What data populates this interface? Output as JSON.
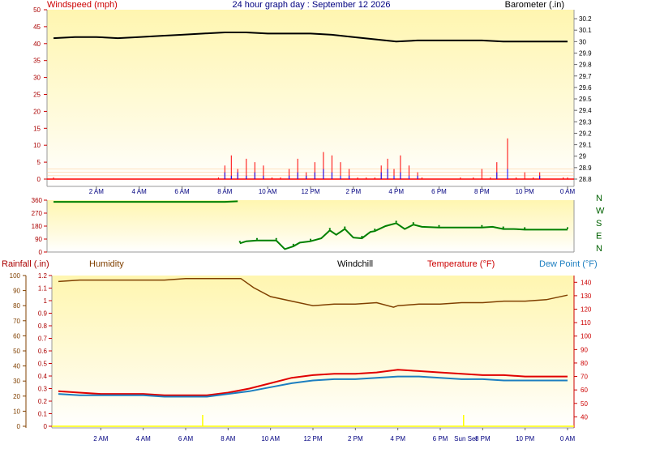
{
  "window_title": "24 hour graph day : September 12 2026",
  "colors": {
    "wind_gust": "#ff0000",
    "wind_avg": "#0000ff",
    "barometer": "#000000",
    "direction": "#008000",
    "humidity": "#804000",
    "temperature": "#e00000",
    "dewpoint": "#1c7ec0",
    "rain": "#ffff00",
    "left_axis_text": "#aa0000",
    "dir_axis_text": "#006000"
  },
  "chart_data": [
    {
      "type": "line",
      "name": "wind-barometer",
      "title": "24 hour graph day : September 12 2026",
      "y_left_label": "Windspeed (mph)",
      "y_right_label": "Barometer (.in)",
      "y_left_ticks": [
        "0",
        "5",
        "10",
        "15",
        "20",
        "25",
        "30",
        "35",
        "40",
        "45",
        "50"
      ],
      "y_right_ticks": [
        "28.8",
        "28.9",
        "29",
        "29.1",
        "29.2",
        "29.3",
        "29.4",
        "29.5",
        "29.6",
        "29.7",
        "29.8",
        "29.9",
        "30",
        "30.1",
        "30.2"
      ],
      "x_ticks": [
        "2 AM",
        "4 AM",
        "6 AM",
        "8 AM",
        "10 AM",
        "12 PM",
        "2 PM",
        "4 PM",
        "6 PM",
        "8 PM",
        "10 PM",
        "0 AM"
      ],
      "ylim_left": [
        0,
        50
      ],
      "ylim_right": [
        28.75,
        30.25
      ],
      "xlim": [
        0,
        24
      ],
      "barometer": {
        "x": [
          0,
          1,
          2,
          3,
          4,
          5,
          6,
          7,
          8,
          9,
          10,
          11,
          12,
          13,
          14,
          15,
          16,
          17,
          18,
          19,
          20,
          21,
          22,
          23,
          24
        ],
        "values": [
          30.03,
          30.04,
          30.04,
          30.03,
          30.04,
          30.05,
          30.06,
          30.07,
          30.08,
          30.08,
          30.07,
          30.07,
          30.07,
          30.06,
          30.04,
          30.02,
          30.0,
          30.01,
          30.01,
          30.01,
          30.01,
          30.0,
          30.0,
          30.0,
          30.0
        ]
      },
      "wind_gust": {
        "x": [
          0,
          7.7,
          8.0,
          8.3,
          8.6,
          9.0,
          9.4,
          9.8,
          10.2,
          10.6,
          11.0,
          11.4,
          11.8,
          12.2,
          12.6,
          13.0,
          13.4,
          13.8,
          14.2,
          14.6,
          15.0,
          15.3,
          15.6,
          15.9,
          16.2,
          16.6,
          17.0,
          17.2,
          19.0,
          19.6,
          20.0,
          20.4,
          20.7,
          21.2,
          21.6,
          22.0,
          22.4,
          22.7,
          23.8,
          24
        ],
        "values": [
          0.5,
          0.5,
          4,
          7,
          3,
          6,
          5,
          4,
          0.5,
          0.5,
          3,
          6,
          2,
          5,
          8,
          7,
          5,
          3,
          0.5,
          0.5,
          0.5,
          4,
          6,
          3,
          7,
          4,
          2,
          0.5,
          0.5,
          0.5,
          3,
          0.5,
          5,
          12,
          0.5,
          2,
          0.5,
          2,
          0.5,
          0.5
        ]
      },
      "wind_avg": {
        "x": [
          0,
          7.7,
          8.0,
          8.3,
          8.6,
          9.0,
          9.4,
          9.8,
          10.2,
          10.6,
          11.0,
          11.4,
          11.8,
          12.2,
          12.6,
          13.0,
          13.4,
          13.8,
          14.2,
          14.6,
          15.0,
          15.3,
          15.6,
          15.9,
          16.2,
          16.6,
          17.0,
          17.2,
          19.0,
          20.7,
          21.2,
          21.6,
          22.7,
          24
        ],
        "values": [
          0,
          0,
          2,
          1,
          2,
          1,
          2,
          1,
          0,
          0,
          1,
          2,
          1,
          2,
          3,
          2,
          1,
          1,
          0,
          0,
          0,
          2,
          3,
          1,
          2,
          1,
          1,
          0,
          0,
          2,
          3,
          0,
          1,
          0
        ]
      }
    },
    {
      "type": "scatter",
      "name": "wind-direction",
      "y_left_ticks": [
        "0",
        "90",
        "180",
        "270",
        "360"
      ],
      "y_right_labels": [
        "N",
        "W",
        "S",
        "E",
        "N"
      ],
      "ylim": [
        0,
        360
      ],
      "xlim": [
        0,
        24
      ],
      "series": [
        {
          "x": [
            0,
            1,
            2,
            3,
            4,
            5,
            6,
            7,
            8,
            8.6
          ],
          "values": [
            348,
            348,
            348,
            348,
            348,
            348,
            348,
            348,
            348,
            352
          ]
        },
        {
          "x": [
            8.7,
            9.0,
            9.5,
            10.0,
            10.4,
            10.8,
            11.2,
            11.5,
            12.0,
            12.5,
            12.9,
            13.2,
            13.6,
            14.0,
            14.4,
            14.8,
            15.0,
            15.5,
            16.0,
            16.4,
            16.8,
            17.2,
            18.0,
            19.0,
            20.0,
            20.5,
            21.0,
            21.5,
            22.0,
            23.0,
            24.0
          ],
          "values": [
            60,
            75,
            80,
            80,
            80,
            20,
            40,
            65,
            75,
            95,
            150,
            120,
            160,
            100,
            95,
            140,
            145,
            180,
            200,
            160,
            190,
            175,
            170,
            170,
            170,
            175,
            160,
            160,
            155,
            155,
            155
          ]
        }
      ]
    },
    {
      "type": "line",
      "name": "temperature-humidity",
      "y_left_label": "Rainfall (.in)",
      "y_left2_label": "Humidity",
      "center_label": "Windchill",
      "y_right_label": "Temperature (°F)",
      "y_right2_label": "Dew Point (°F)",
      "y_rain_ticks": [
        "0",
        "0.1",
        "0.2",
        "0.3",
        "0.4",
        "0.5",
        "0.6",
        "0.7",
        "0.8",
        "0.9",
        "1",
        "1.1",
        "1.2"
      ],
      "y_humidity_ticks": [
        "0",
        "10",
        "20",
        "30",
        "40",
        "50",
        "60",
        "70",
        "80",
        "90",
        "100"
      ],
      "y_temp_ticks": [
        "40",
        "50",
        "60",
        "70",
        "80",
        "90",
        "100",
        "110",
        "120",
        "130",
        "140"
      ],
      "x_ticks": [
        "2 AM",
        "4 AM",
        "6 AM",
        "8 AM",
        "10 AM",
        "12 PM",
        "2 PM",
        "4 PM",
        "6 PM",
        "8 PM",
        "10 PM",
        "0 AM"
      ],
      "annotation": "Sun Set",
      "xlim": [
        0,
        24
      ],
      "humidity": {
        "x": [
          0,
          1,
          2,
          3,
          4,
          5,
          6,
          7,
          8,
          8.6,
          9.2,
          10,
          11,
          12,
          13,
          14,
          15,
          15.8,
          16,
          17,
          18,
          19,
          20,
          21,
          22,
          23,
          24
        ],
        "values": [
          96,
          97,
          97,
          97,
          97,
          97,
          98,
          98,
          98,
          98,
          92,
          86,
          83,
          80,
          81,
          81,
          82,
          79,
          80,
          81,
          81,
          82,
          82,
          83,
          83,
          84,
          87
        ]
      },
      "temperature": {
        "x": [
          0,
          1,
          2,
          3,
          4,
          5,
          6,
          7,
          8,
          9,
          10,
          11,
          12,
          13,
          14,
          15,
          16,
          17,
          18,
          19,
          20,
          21,
          22,
          23,
          24
        ],
        "values": [
          59,
          58,
          57,
          57,
          57,
          56,
          56,
          56,
          58,
          61,
          65,
          69,
          71,
          72,
          72,
          73,
          75,
          74,
          73,
          72,
          71,
          71,
          70,
          70,
          70
        ]
      },
      "dewpoint": {
        "x": [
          0,
          1,
          2,
          3,
          4,
          5,
          6,
          7,
          8,
          9,
          10,
          11,
          12,
          13,
          14,
          15,
          16,
          17,
          18,
          19,
          20,
          21,
          22,
          23,
          24
        ],
        "values": [
          57,
          56,
          56,
          56,
          56,
          55,
          55,
          55,
          57,
          59,
          62,
          65,
          67,
          68,
          68,
          69,
          70,
          70,
          69,
          68,
          68,
          67,
          67,
          67,
          67
        ]
      },
      "rain_ticks_x": [
        6.8,
        19.1
      ]
    }
  ]
}
